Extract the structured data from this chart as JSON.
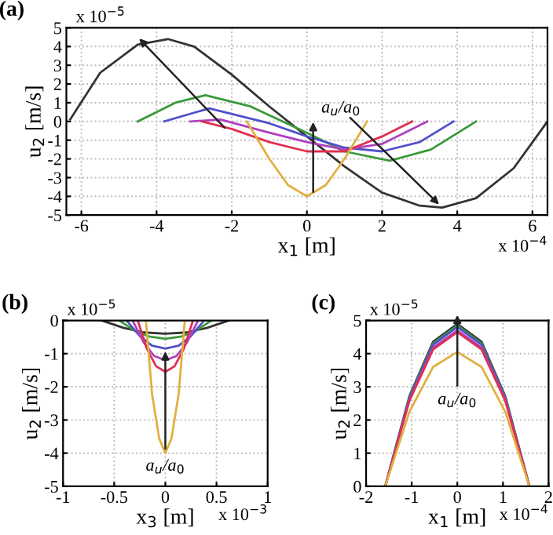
{
  "chart_data": [
    {
      "type": "line",
      "title": "(a)",
      "xlabel": "x$_{1}$ [m]",
      "ylabel": "u$_{2}$ [m/s]",
      "xlim": [
        -6.4,
        6.4
      ],
      "ylim": [
        -5,
        5
      ],
      "xticks": [
        -6,
        -4,
        -2,
        0,
        2,
        4,
        6
      ],
      "yticks": [
        -5,
        -4,
        -3,
        -2,
        -1,
        0,
        1,
        2,
        3,
        4,
        5
      ],
      "grid": true,
      "annotations": [
        "x 10$^{−5}$",
        "x 10$^{−4}$",
        {
          "text": "a$_{u}$/a$_{0}$",
          "x": 3.6,
          "y": -4.6
        }
      ],
      "series": [
        {
          "color": "#333333",
          "x": [
            -6.3,
            -5.5,
            -4.5,
            -3.7,
            -3,
            -2,
            -1,
            0,
            1,
            2,
            3,
            3.6,
            4.5,
            5.5,
            6.4
          ],
          "values": [
            0.1,
            2.6,
            4.1,
            4.4,
            4.0,
            2.5,
            0.8,
            -0.8,
            -2.4,
            -3.8,
            -4.5,
            -4.6,
            -4.1,
            -2.5,
            0
          ]
        },
        {
          "color": "#3a9a3a",
          "x": [
            -4.5,
            -3.5,
            -2.7,
            -1.5,
            0,
            1,
            2.2,
            3.3,
            4.5
          ],
          "values": [
            0,
            1.0,
            1.4,
            0.8,
            -0.6,
            -1.6,
            -2.1,
            -1.5,
            0
          ]
        },
        {
          "color": "#5050c8",
          "x": [
            -3.8,
            -2.6,
            -1,
            0,
            1,
            2,
            3,
            3.9
          ],
          "values": [
            0,
            0.7,
            -0.1,
            -0.8,
            -1.4,
            -1.6,
            -1.1,
            0
          ]
        },
        {
          "color": "#b040c0",
          "x": [
            -3.1,
            -2.3,
            -1,
            0,
            1,
            2,
            2.6,
            3.2
          ],
          "values": [
            0,
            0.1,
            -0.6,
            -1.1,
            -1.5,
            -1.2,
            -0.6,
            0
          ]
        },
        {
          "color": "#e03050",
          "x": [
            -2.8,
            -2,
            -1,
            0,
            1,
            2,
            2.8
          ],
          "values": [
            0,
            -0.4,
            -1.1,
            -1.6,
            -1.6,
            -0.8,
            0
          ]
        },
        {
          "color": "#e0b040",
          "x": [
            -1.6,
            -1,
            -0.5,
            0,
            0.5,
            1,
            1.6
          ],
          "values": [
            0,
            -2.0,
            -3.4,
            -4.0,
            -3.4,
            -2.0,
            0
          ]
        }
      ]
    },
    {
      "type": "line",
      "title": "(b)",
      "xlabel": "x$_{3}$ [m]",
      "ylabel": "u$_{2}$ [m/s]",
      "xlim": [
        -1,
        1
      ],
      "ylim": [
        -5,
        0
      ],
      "xticks": [
        -1,
        -0.5,
        0,
        0.5,
        1
      ],
      "yticks": [
        -5,
        -4,
        -3,
        -2,
        -1,
        0
      ],
      "grid": true,
      "annotations": [
        "x 10$^{−5}$",
        "x 10$^{−3}$",
        "a$_{u}$/a$_{0}$"
      ],
      "series": [
        {
          "color": "#333333",
          "x": [
            -0.62,
            -0.41,
            -0.21,
            0,
            0.21,
            0.41,
            0.62
          ],
          "values": [
            0,
            -0.22,
            -0.36,
            -0.4,
            -0.36,
            -0.22,
            0
          ]
        },
        {
          "color": "#3a9a3a",
          "x": [
            -0.45,
            -0.3,
            -0.15,
            0,
            0.15,
            0.3,
            0.45
          ],
          "values": [
            0,
            -0.31,
            -0.49,
            -0.55,
            -0.49,
            -0.31,
            0
          ]
        },
        {
          "color": "#5050c8",
          "x": [
            -0.38,
            -0.25,
            -0.13,
            0,
            0.13,
            0.25,
            0.38
          ],
          "values": [
            0,
            -0.47,
            -0.76,
            -0.85,
            -0.76,
            -0.47,
            0
          ]
        },
        {
          "color": "#b040c0",
          "x": [
            -0.32,
            -0.21,
            -0.11,
            0,
            0.11,
            0.21,
            0.32
          ],
          "values": [
            0,
            -0.67,
            -1.07,
            -1.2,
            -1.07,
            -0.67,
            0
          ]
        },
        {
          "color": "#e03050",
          "x": [
            -0.27,
            -0.18,
            -0.09,
            0,
            0.09,
            0.18,
            0.27
          ],
          "values": [
            0,
            -0.86,
            -1.38,
            -1.55,
            -1.38,
            -0.86,
            0
          ]
        },
        {
          "color": "#e0b040",
          "x": [
            -0.19,
            -0.13,
            -0.06,
            0,
            0.06,
            0.13,
            0.19
          ],
          "values": [
            0,
            -2.22,
            -3.56,
            -4.0,
            -3.56,
            -2.22,
            0
          ]
        }
      ]
    },
    {
      "type": "line",
      "title": "(c)",
      "xlabel": "x$_{1}$ [m]",
      "ylabel": "u$_{2}$ [m/s]",
      "xlim": [
        -2,
        2
      ],
      "ylim": [
        0,
        5
      ],
      "xticks": [
        -2,
        -1,
        0,
        1,
        2
      ],
      "yticks": [
        0,
        1,
        2,
        3,
        4,
        5
      ],
      "grid": true,
      "annotations": [
        "x 10$^{−5}$",
        "x 10$^{−4}$",
        "a$_{u}$/a$_{0}$"
      ],
      "series": [
        {
          "color": "#333333",
          "x": [
            -1.58,
            -1.05,
            -0.53,
            0,
            0.53,
            1.05,
            1.58
          ],
          "values": [
            0,
            2.72,
            4.36,
            4.9,
            4.36,
            2.72,
            0
          ]
        },
        {
          "color": "#3a9a3a",
          "x": [
            -1.58,
            -1.05,
            -0.53,
            0,
            0.53,
            1.05,
            1.58
          ],
          "values": [
            0,
            2.7,
            4.31,
            4.85,
            4.31,
            2.7,
            0
          ]
        },
        {
          "color": "#5050c8",
          "x": [
            -1.58,
            -1.05,
            -0.53,
            0,
            0.53,
            1.05,
            1.58
          ],
          "values": [
            0,
            2.67,
            4.27,
            4.8,
            4.27,
            2.67,
            0
          ]
        },
        {
          "color": "#b040c0",
          "x": [
            -1.58,
            -1.05,
            -0.53,
            0,
            0.53,
            1.05,
            1.58
          ],
          "values": [
            0,
            2.61,
            4.18,
            4.7,
            4.18,
            2.61,
            0
          ]
        },
        {
          "color": "#e03050",
          "x": [
            -1.58,
            -1.05,
            -0.53,
            0,
            0.53,
            1.05,
            1.58
          ],
          "values": [
            0,
            2.58,
            4.13,
            4.65,
            4.13,
            2.58,
            0
          ]
        },
        {
          "color": "#e0b040",
          "x": [
            -1.58,
            -1.05,
            -0.53,
            0,
            0.53,
            1.05,
            1.58
          ],
          "values": [
            0,
            2.25,
            3.6,
            4.05,
            3.6,
            2.25,
            0
          ]
        }
      ]
    }
  ]
}
